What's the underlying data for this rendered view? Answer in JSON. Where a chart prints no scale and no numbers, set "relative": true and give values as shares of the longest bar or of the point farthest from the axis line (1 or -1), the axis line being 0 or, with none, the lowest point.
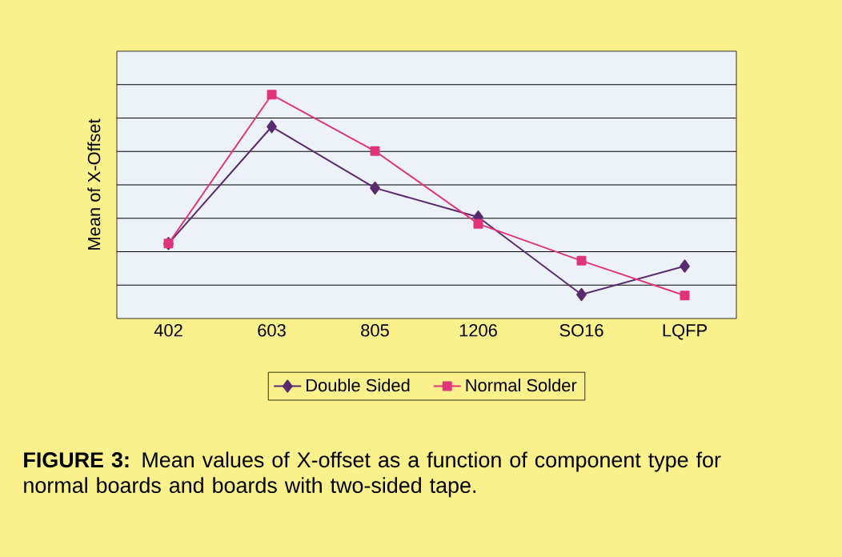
{
  "chart_data": {
    "type": "line",
    "ylabel": "Mean of X-Offset",
    "categories": [
      "402",
      "603",
      "805",
      "1206",
      "SO16",
      "LQFP"
    ],
    "relative": true,
    "grid": "y",
    "legend": "bottom",
    "series": [
      {
        "name": "Double Sided",
        "color": "#5a2a6e",
        "marker": "diamond",
        "values": [
          0.335,
          0.857,
          0.583,
          0.453,
          0.107,
          0.234
        ]
      },
      {
        "name": "Normal Solder",
        "color": "#e0357a",
        "marker": "square",
        "values": [
          0.335,
          1.0,
          0.748,
          0.423,
          0.258,
          0.103
        ]
      }
    ],
    "annotations": [
      "**FIGURE 3:** Mean values of X-offset as a function of component type for normal boards and boards with two-sided tape."
    ]
  }
}
